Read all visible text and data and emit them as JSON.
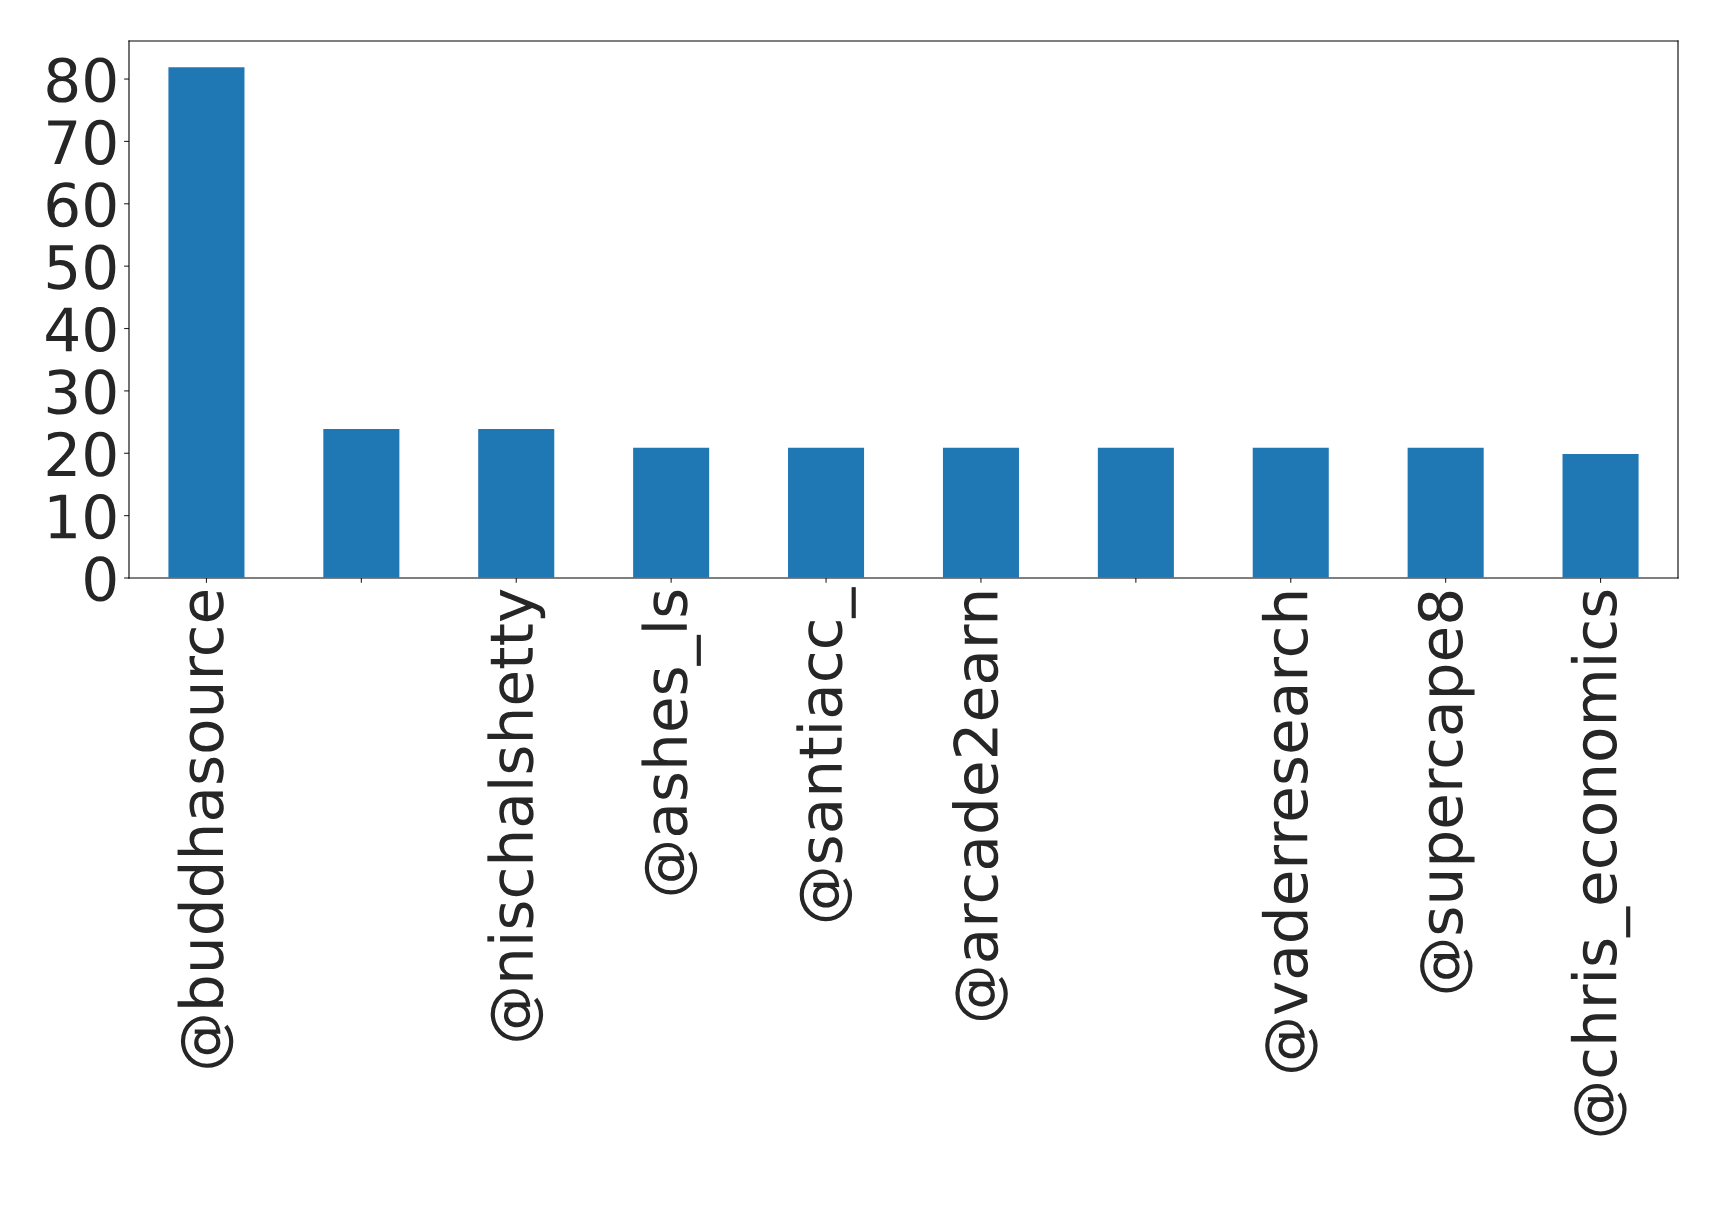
{
  "chart_data": {
    "type": "bar",
    "categories": [
      "@buddhasource",
      null,
      "@nischalshetty",
      "@ashes_ls",
      "@santiacc_",
      "@arcade2earn",
      null,
      "@vaderresearch",
      "@supercape8",
      "@chris_economics"
    ],
    "values": [
      82,
      24,
      24,
      21,
      21,
      21,
      21,
      21,
      21,
      20
    ],
    "color": "#1f77b4",
    "ylim": [
      0,
      86.1
    ],
    "yticks": [
      0,
      10,
      20,
      30,
      40,
      50,
      60,
      70,
      80
    ],
    "grid": false,
    "legend": false
  }
}
